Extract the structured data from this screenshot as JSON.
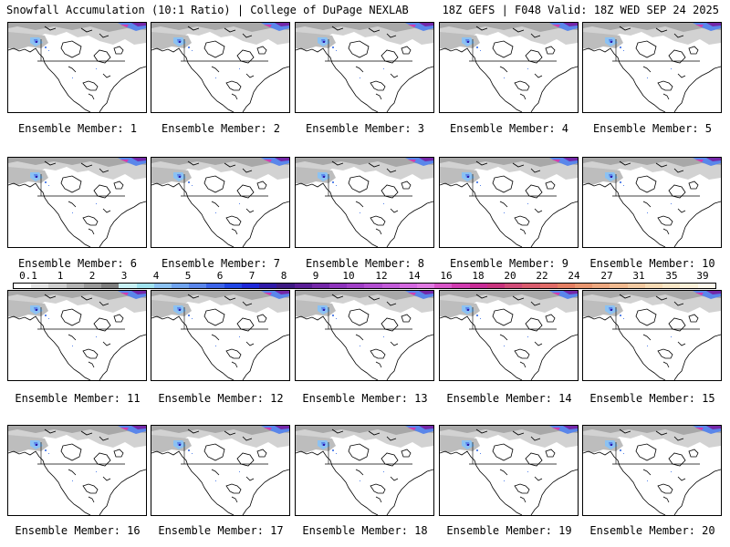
{
  "header": {
    "title": "Snowfall Accumulation (10:1 Ratio) | College of DuPage NEXLAB",
    "run_info": "18Z GEFS | F048 Valid: 18Z WED SEP 24 2025"
  },
  "member_label_prefix": "Ensemble Member:",
  "members": [
    1,
    2,
    3,
    4,
    5,
    6,
    7,
    8,
    9,
    10,
    11,
    12,
    13,
    14,
    15,
    16,
    17,
    18,
    19,
    20
  ],
  "colorbar": {
    "labels": [
      "0.1",
      "1",
      "2",
      "3",
      "4",
      "5",
      "6",
      "7",
      "8",
      "9",
      "10",
      "12",
      "14",
      "16",
      "18",
      "20",
      "22",
      "24",
      "27",
      "31",
      "35",
      "39"
    ],
    "colors": [
      "#ffffff",
      "#e4e4e4",
      "#cfcfcf",
      "#b4b4b4",
      "#9a9a9a",
      "#7e7e7e",
      "#c8f0f4",
      "#a0e2ee",
      "#8cc2f2",
      "#70a4ee",
      "#5a86ea",
      "#3c64e8",
      "#2046e4",
      "#1e28d8",
      "#301aa8",
      "#3e1a84",
      "#5a1e96",
      "#7428a8",
      "#8e34bc",
      "#a040c6",
      "#b24ed0",
      "#c25cd8",
      "#d46ae0",
      "#e07ae2",
      "#d856c8",
      "#d03cb0",
      "#c82c96",
      "#c8347e",
      "#d04c78",
      "#d85c6e",
      "#e06c68",
      "#e48064",
      "#e89670",
      "#eca880",
      "#f0ba90",
      "#f2caa2",
      "#f6dab4",
      "#f8e6c6",
      "#faf0d8",
      "#fdf8ec"
    ]
  }
}
